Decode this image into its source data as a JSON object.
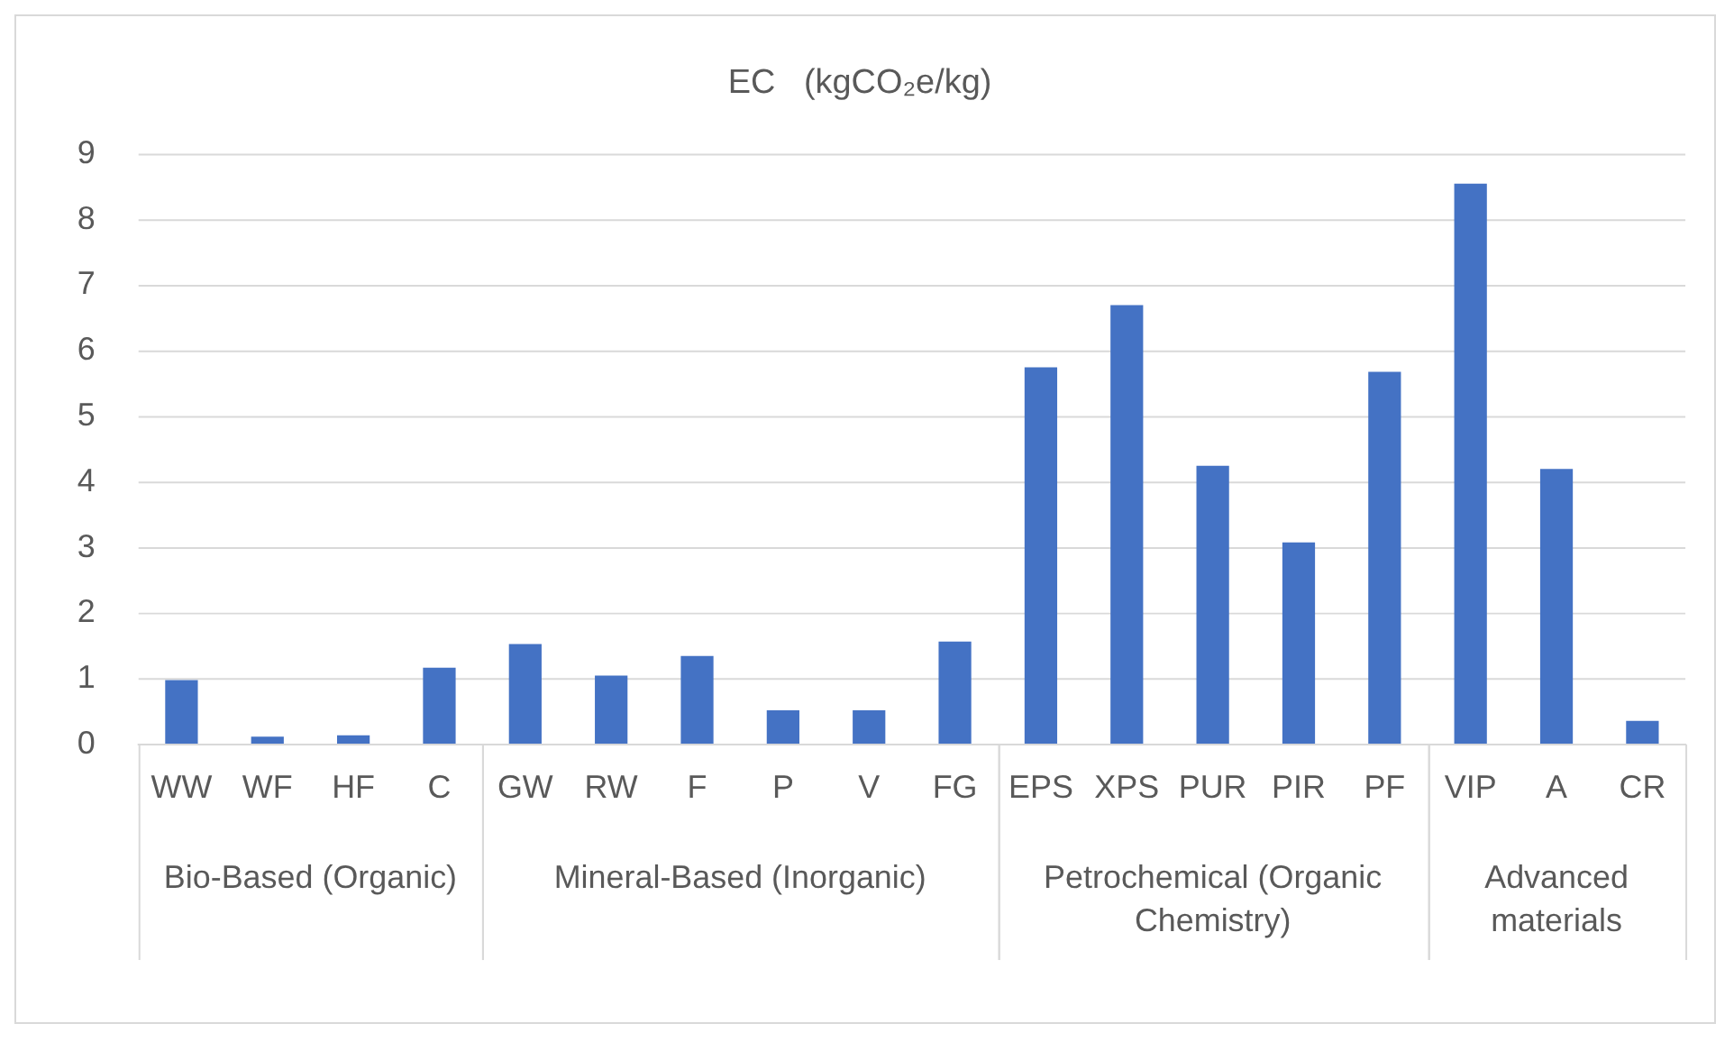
{
  "chart_data": {
    "type": "bar",
    "title": "EC   (kgCO₂e/kg)",
    "categories": [
      "WW",
      "WF",
      "HF",
      "C",
      "GW",
      "RW",
      "F",
      "P",
      "V",
      "FG",
      "EPS",
      "XPS",
      "PUR",
      "PIR",
      "PF",
      "VIP",
      "A",
      "CR"
    ],
    "values": [
      0.98,
      0.12,
      0.14,
      1.17,
      1.53,
      1.05,
      1.35,
      0.52,
      0.52,
      1.57,
      5.75,
      6.7,
      4.25,
      3.08,
      5.68,
      8.55,
      4.2,
      0.36
    ],
    "color": "#4472c4",
    "ylim": [
      0,
      9
    ],
    "yticks": [
      0,
      1,
      2,
      3,
      4,
      5,
      6,
      7,
      8,
      9
    ],
    "grid": "y",
    "legend": false,
    "annotations": [
      "Bio-Based (Organic)",
      "Mineral-Based (Inorganic)",
      "Petrochemical (Organic Chemistry)",
      "Advanced materials"
    ]
  }
}
